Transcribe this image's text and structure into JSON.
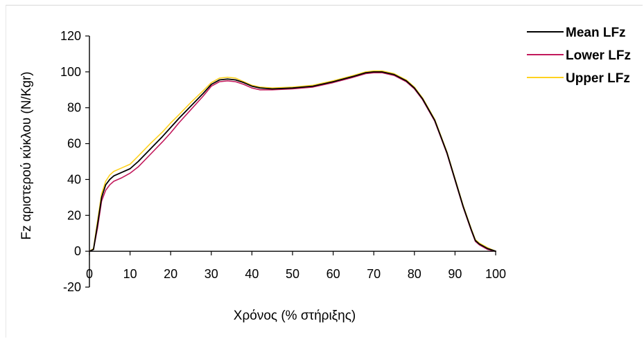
{
  "chart_data": {
    "type": "line",
    "title": "",
    "xlabel": "Χρόνος (% στήριξης)",
    "ylabel": "Fz αριστερού κύκλου (N/Kgr)",
    "xlim": [
      0,
      100
    ],
    "ylim": [
      -20,
      120
    ],
    "x_ticks": [
      0,
      10,
      20,
      30,
      40,
      50,
      60,
      70,
      80,
      90,
      100
    ],
    "y_ticks": [
      -20,
      0,
      20,
      40,
      60,
      80,
      100,
      120
    ],
    "x_tick_labels": [
      "0",
      "10",
      "20",
      "30",
      "40",
      "50",
      "60",
      "70",
      "80",
      "90",
      "100"
    ],
    "y_tick_labels": [
      "-20",
      "0",
      "20",
      "40",
      "60",
      "80",
      "100",
      "120"
    ],
    "grid": false,
    "legend": "top-right",
    "x": [
      0,
      1,
      2,
      3,
      4,
      5,
      6,
      8,
      10,
      12,
      15,
      18,
      20,
      22,
      25,
      28,
      30,
      32,
      34,
      36,
      38,
      40,
      42,
      45,
      50,
      55,
      60,
      65,
      68,
      70,
      72,
      75,
      78,
      80,
      82,
      85,
      88,
      90,
      92,
      94,
      95,
      96,
      98,
      100
    ],
    "series": [
      {
        "name": "Mean LFz",
        "color": "#000000",
        "values": [
          0,
          1,
          15,
          30,
          37,
          40,
          42,
          44,
          46,
          50,
          57,
          64,
          69,
          74,
          81,
          88,
          93,
          95.5,
          96,
          95.5,
          94,
          92,
          91,
          90.5,
          91,
          92,
          94.5,
          97.5,
          99.5,
          100,
          100,
          98.5,
          95,
          91,
          85,
          73,
          55,
          40,
          25,
          12,
          6,
          4,
          1.5,
          0
        ]
      },
      {
        "name": "Lower LFz",
        "color": "#c2185b",
        "values": [
          0,
          1,
          13,
          28,
          34,
          37,
          39,
          41,
          43.5,
          47,
          54,
          61,
          66,
          71.5,
          79,
          86.5,
          92,
          94.5,
          95,
          94.5,
          93,
          91,
          90,
          90,
          90.5,
          91.5,
          94,
          97,
          99,
          99.5,
          99.5,
          98,
          94.5,
          90.5,
          84.5,
          72.5,
          54.5,
          39.5,
          24.5,
          11.5,
          5.5,
          3.5,
          1,
          0
        ]
      },
      {
        "name": "Upper LFz",
        "color": "#ffd21f",
        "values": [
          0,
          1.5,
          17,
          32,
          39,
          42.5,
          44.5,
          46.5,
          48.5,
          53,
          60,
          66.5,
          71.5,
          76,
          83,
          89.5,
          94,
          96.5,
          97,
          96.5,
          94.5,
          92.5,
          91.5,
          91,
          91.5,
          92.5,
          95,
          98,
          100,
          100.5,
          100.5,
          99,
          95.5,
          91.5,
          85.5,
          73.5,
          55.5,
          40.5,
          25.5,
          12.5,
          6.5,
          4.5,
          2,
          0
        ]
      }
    ]
  }
}
